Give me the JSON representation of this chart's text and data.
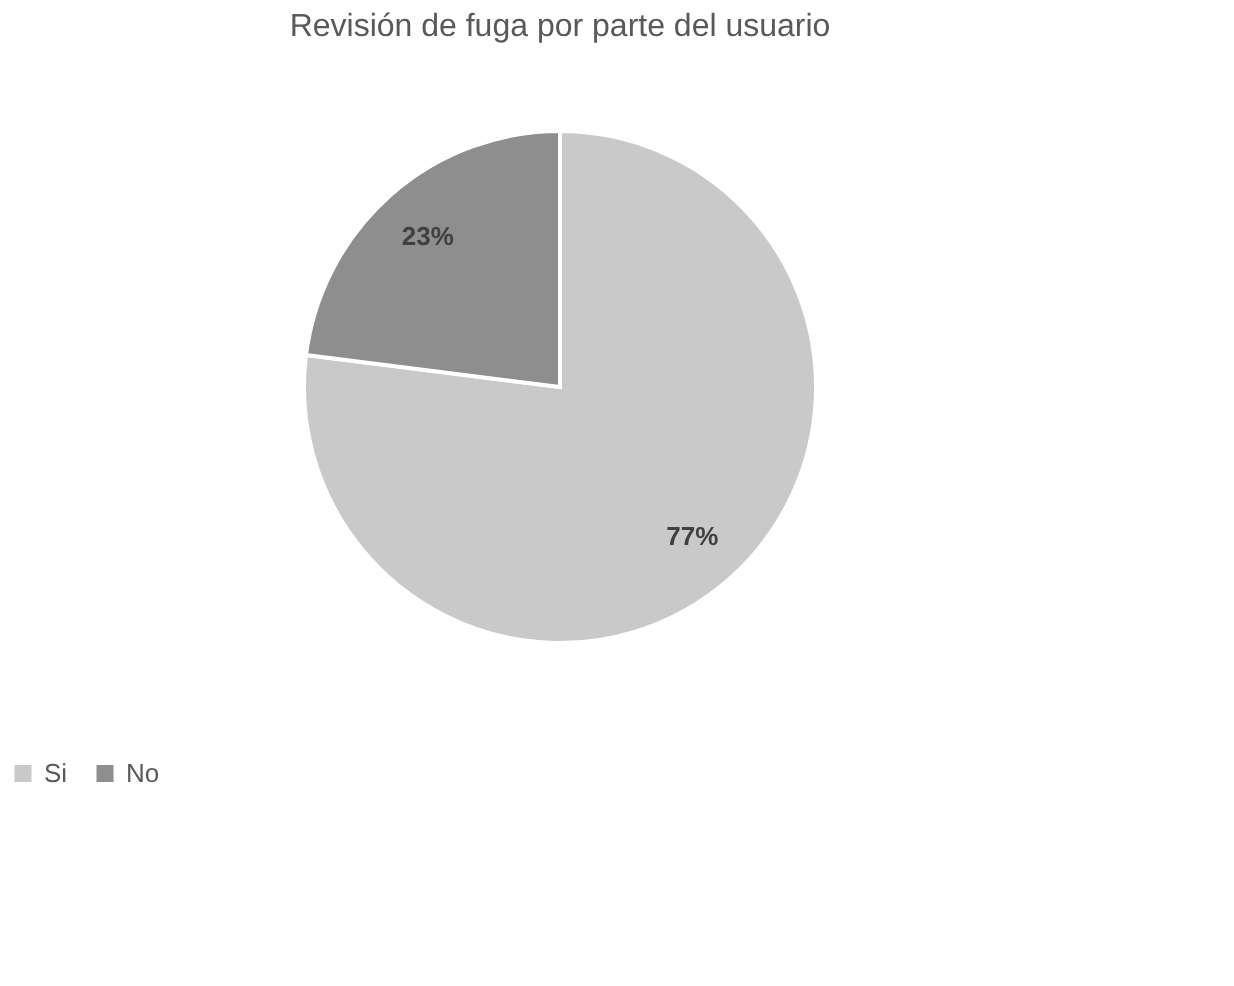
{
  "chart_data": {
    "type": "pie",
    "title": "Revisión de fuga por parte del usuario",
    "categories": [
      "Si",
      "No"
    ],
    "values": [
      77,
      23
    ],
    "colors": [
      "#c9c9c9",
      "#8e8e8e"
    ],
    "value_labels": [
      "77%",
      "23%"
    ],
    "legend": "bottom"
  }
}
